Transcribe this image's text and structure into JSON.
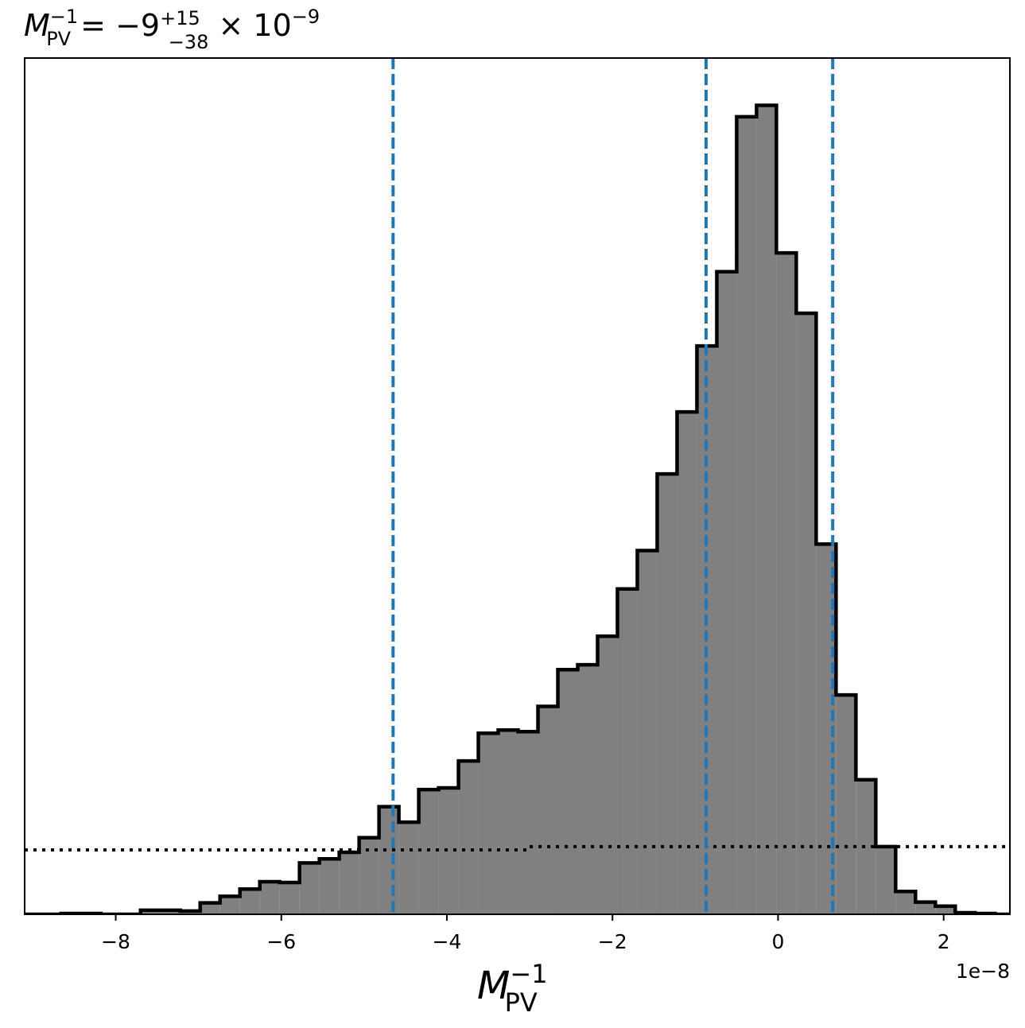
{
  "chart_data": {
    "type": "bar",
    "title": {
      "base": "M",
      "base_sup": "−1",
      "base_sub": "PV",
      "equals": " = −9",
      "err_plus": "+15",
      "err_minus": "−38",
      "times": " × 10",
      "exp": "−9"
    },
    "xlabel": {
      "base": "M",
      "sup": "−1",
      "sub": "PV"
    },
    "x_offset_label": "1e−8",
    "xlim": [
      -9.1,
      2.8
    ],
    "ylim": [
      0,
      1.05
    ],
    "xticks": [
      -8,
      -6,
      -4,
      -2,
      0,
      2
    ],
    "xtick_labels": [
      "−8",
      "−6",
      "−4",
      "−2",
      "0",
      "2"
    ],
    "bin_edges": [
      -8.9,
      -8.66,
      -8.42,
      -8.18,
      -7.94,
      -7.7,
      -7.46,
      -7.22,
      -6.98,
      -6.74,
      -6.5,
      -6.26,
      -6.02,
      -5.78,
      -5.54,
      -5.3,
      -5.06,
      -4.82,
      -4.58,
      -4.34,
      -4.1,
      -3.86,
      -3.62,
      -3.38,
      -3.14,
      -2.9,
      -2.66,
      -2.42,
      -2.18,
      -1.94,
      -1.7,
      -1.46,
      -1.22,
      -0.98,
      -0.74,
      -0.5,
      -0.26,
      -0.02,
      0.22,
      0.46,
      0.7,
      0.94,
      1.18,
      1.42,
      1.66,
      1.9,
      2.14,
      2.38,
      2.62
    ],
    "bin_values": [
      0,
      0.001,
      0.001,
      0.0,
      0.0,
      0.005,
      0.005,
      0.004,
      0.014,
      0.022,
      0.031,
      0.04,
      0.039,
      0.063,
      0.068,
      0.076,
      0.094,
      0.132,
      0.113,
      0.153,
      0.155,
      0.188,
      0.222,
      0.226,
      0.224,
      0.255,
      0.3,
      0.306,
      0.341,
      0.399,
      0.446,
      0.54,
      0.616,
      0.697,
      0.788,
      0.978,
      0.992,
      0.811,
      0.737,
      0.454,
      0.269,
      0.165,
      0.083,
      0.028,
      0.015,
      0.01,
      0.002,
      0.001
    ],
    "vlines": [
      -4.65,
      -0.87,
      0.66
    ],
    "prior_line": [
      {
        "x0": -9.1,
        "x1": -3.0,
        "y": 0.079
      },
      {
        "x0": -3.0,
        "x1": 2.8,
        "y": 0.083
      }
    ],
    "colors": {
      "fill": "#808080",
      "edge": "#000000",
      "vline": "#1f77b4",
      "prior": "#000000"
    }
  }
}
